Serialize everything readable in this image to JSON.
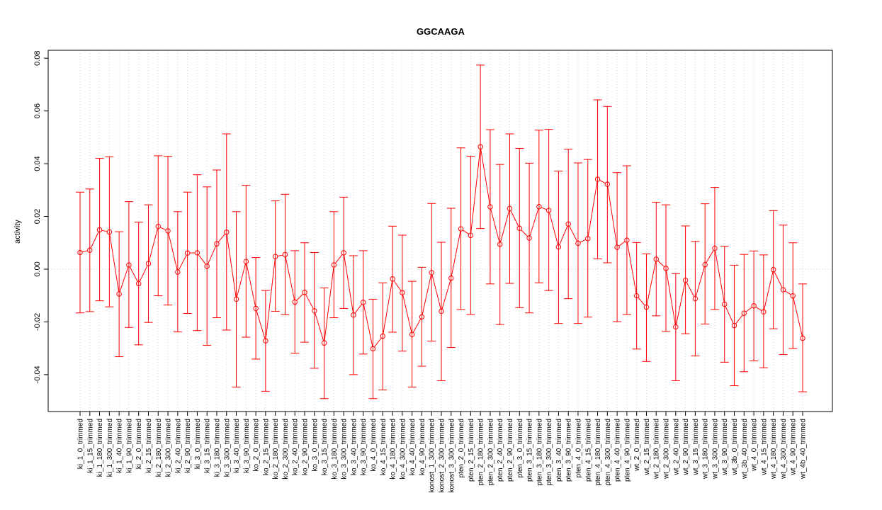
{
  "chart_data": {
    "type": "line",
    "title": "GGCAAGA",
    "xlabel": "",
    "ylabel": "activity",
    "ylim": [
      -0.054,
      0.083
    ],
    "yticks": [
      -0.04,
      -0.02,
      0.0,
      0.02,
      0.04,
      0.06,
      0.08
    ],
    "ytick_labels": [
      "-0.04",
      "-0.02",
      "0.00",
      "0.02",
      "0.04",
      "0.06",
      "0.08"
    ],
    "grid": true,
    "reference_line": 0,
    "color": "#ff0000",
    "categories": [
      "ki_1_0_trimmed",
      "ki_1_15_trimmed",
      "ki_1_180_trimmed",
      "ki_1_300_trimmed",
      "ki_1_40_trimmed",
      "ki_1_90_trimmed",
      "ki_2_0_trimmed",
      "ki_2_15_trimmed",
      "ki_2_180_trimmed",
      "ki_2_300_trimmed",
      "ki_2_40_trimmed",
      "ki_2_90_trimmed",
      "ki_3_0_trimmed",
      "ki_3_15_trimmed",
      "ki_3_180_trimmed",
      "ki_3_300_trimmed",
      "ki_3_40_trimmed",
      "ki_3_90_trimmed",
      "ko_2_0_trimmed",
      "ko_2_15_trimmed",
      "ko_2_180_trimmed",
      "ko_2_300_trimmed",
      "ko_2_40_trimmed",
      "ko_2_90_trimmed",
      "ko_3_0_trimmed",
      "ko_3_15_trimmed",
      "ko_3_180_trimmed",
      "ko_3_300_trimmed",
      "ko_3_40_trimmed",
      "ko_3_90_trimmed",
      "ko_4_0_trimmed",
      "ko_4_15_trimmed",
      "ko_4_180_trimmed",
      "ko_4_300_trimmed",
      "ko_4_40_trimmed",
      "ko_4_90_trimmed",
      "konost_1_300_trimmed",
      "konost_2_300_trimmed",
      "konost_3_300_trimmed",
      "pten_2_0_trimmed",
      "pten_2_15_trimmed",
      "pten_2_180_trimmed",
      "pten_2_300_trimmed",
      "pten_2_40_trimmed",
      "pten_2_90_trimmed",
      "pten_3_0_trimmed",
      "pten_3_15_trimmed",
      "pten_3_180_trimmed",
      "pten_3_300_trimmed",
      "pten_3_40_trimmed",
      "pten_3_90_trimmed",
      "pten_4_0_trimmed",
      "pten_4_15_trimmed",
      "pten_4_180_trimmed",
      "pten_4_300_trimmed",
      "pten_4_40_trimmed",
      "pten_4_90_trimmed",
      "wt_2_0_trimmed",
      "wt_2_15_trimmed",
      "wt_2_180_trimmed",
      "wt_2_300_trimmed",
      "wt_2_40_trimmed",
      "wt_2_90_trimmed",
      "wt_3_15_trimmed",
      "wt_3_180_trimmed",
      "wt_3_300_trimmed",
      "wt_3_90_trimmed",
      "wt_3b_0_trimmed",
      "wt_3b_40_trimmed",
      "wt_4_0_trimmed",
      "wt_4_15_trimmed",
      "wt_4_180_trimmed",
      "wt_4_300_trimmed",
      "wt_4_90_trimmed",
      "wt_4b_40_trimmed"
    ],
    "values": [
      0.0063,
      0.0072,
      0.0149,
      0.0141,
      -0.0094,
      0.0016,
      -0.0055,
      0.0021,
      0.0162,
      0.0145,
      -0.0011,
      0.0061,
      0.0062,
      0.0011,
      0.0096,
      0.014,
      -0.0114,
      0.0029,
      -0.0149,
      -0.0272,
      0.0048,
      0.0055,
      -0.0125,
      -0.0088,
      -0.0158,
      -0.028,
      0.0016,
      0.0062,
      -0.0174,
      -0.0126,
      -0.0302,
      -0.0254,
      -0.0037,
      -0.0089,
      -0.0248,
      -0.0181,
      -0.0013,
      -0.016,
      -0.0034,
      0.0153,
      0.0128,
      0.0464,
      0.0236,
      0.0094,
      0.023,
      0.0155,
      0.0118,
      0.0237,
      0.0223,
      0.0084,
      0.0171,
      0.0098,
      0.0116,
      0.0341,
      0.0322,
      0.0083,
      0.011,
      -0.0101,
      -0.0144,
      0.0038,
      0.0003,
      -0.0219,
      -0.0042,
      -0.0112,
      0.0017,
      0.0079,
      -0.0133,
      -0.0214,
      -0.0167,
      -0.0139,
      -0.0162,
      -0.0002,
      -0.0078,
      -0.0101,
      -0.0262
    ],
    "upper": [
      0.0292,
      0.0304,
      0.042,
      0.0426,
      0.0142,
      0.0256,
      0.0178,
      0.0244,
      0.043,
      0.0428,
      0.0218,
      0.0292,
      0.0358,
      0.0312,
      0.0376,
      0.0513,
      0.0218,
      0.0318,
      0.0044,
      -0.0081,
      0.0259,
      0.0284,
      0.007,
      0.01,
      0.0063,
      -0.0071,
      0.0218,
      0.0273,
      0.0051,
      0.007,
      -0.0114,
      -0.0052,
      0.0163,
      0.0129,
      -0.0046,
      0.0007,
      0.0249,
      0.0102,
      0.0231,
      0.046,
      0.0428,
      0.0774,
      0.0529,
      0.0397,
      0.0513,
      0.0458,
      0.0402,
      0.0527,
      0.053,
      0.0372,
      0.0455,
      0.0403,
      0.0416,
      0.0642,
      0.0617,
      0.0366,
      0.0392,
      0.0101,
      0.0058,
      0.0254,
      0.0244,
      -0.0017,
      0.0164,
      0.0105,
      0.0248,
      0.031,
      0.0087,
      0.0015,
      0.0056,
      0.0069,
      0.0054,
      0.0222,
      0.0167,
      0.01,
      -0.0056
    ],
    "lower": [
      -0.0166,
      -0.0161,
      -0.012,
      -0.0143,
      -0.0332,
      -0.0221,
      -0.0287,
      -0.0202,
      -0.0101,
      -0.0136,
      -0.0238,
      -0.0168,
      -0.0233,
      -0.0289,
      -0.0184,
      -0.0231,
      -0.0447,
      -0.0258,
      -0.0341,
      -0.0463,
      -0.016,
      -0.0173,
      -0.0319,
      -0.0277,
      -0.0376,
      -0.0491,
      -0.0184,
      -0.0149,
      -0.04,
      -0.0322,
      -0.0491,
      -0.0458,
      -0.0239,
      -0.0311,
      -0.0447,
      -0.0368,
      -0.0273,
      -0.0423,
      -0.0297,
      -0.0153,
      -0.0172,
      0.0154,
      -0.0056,
      -0.021,
      -0.0054,
      -0.0146,
      -0.0166,
      -0.0052,
      -0.0081,
      -0.0206,
      -0.0112,
      -0.0206,
      -0.0182,
      0.0039,
      0.0024,
      -0.0199,
      -0.0172,
      -0.0303,
      -0.035,
      -0.0177,
      -0.0236,
      -0.0423,
      -0.0245,
      -0.0329,
      -0.0208,
      -0.0153,
      -0.0353,
      -0.0442,
      -0.0389,
      -0.0348,
      -0.0374,
      -0.0226,
      -0.0324,
      -0.0301,
      -0.0465
    ]
  }
}
